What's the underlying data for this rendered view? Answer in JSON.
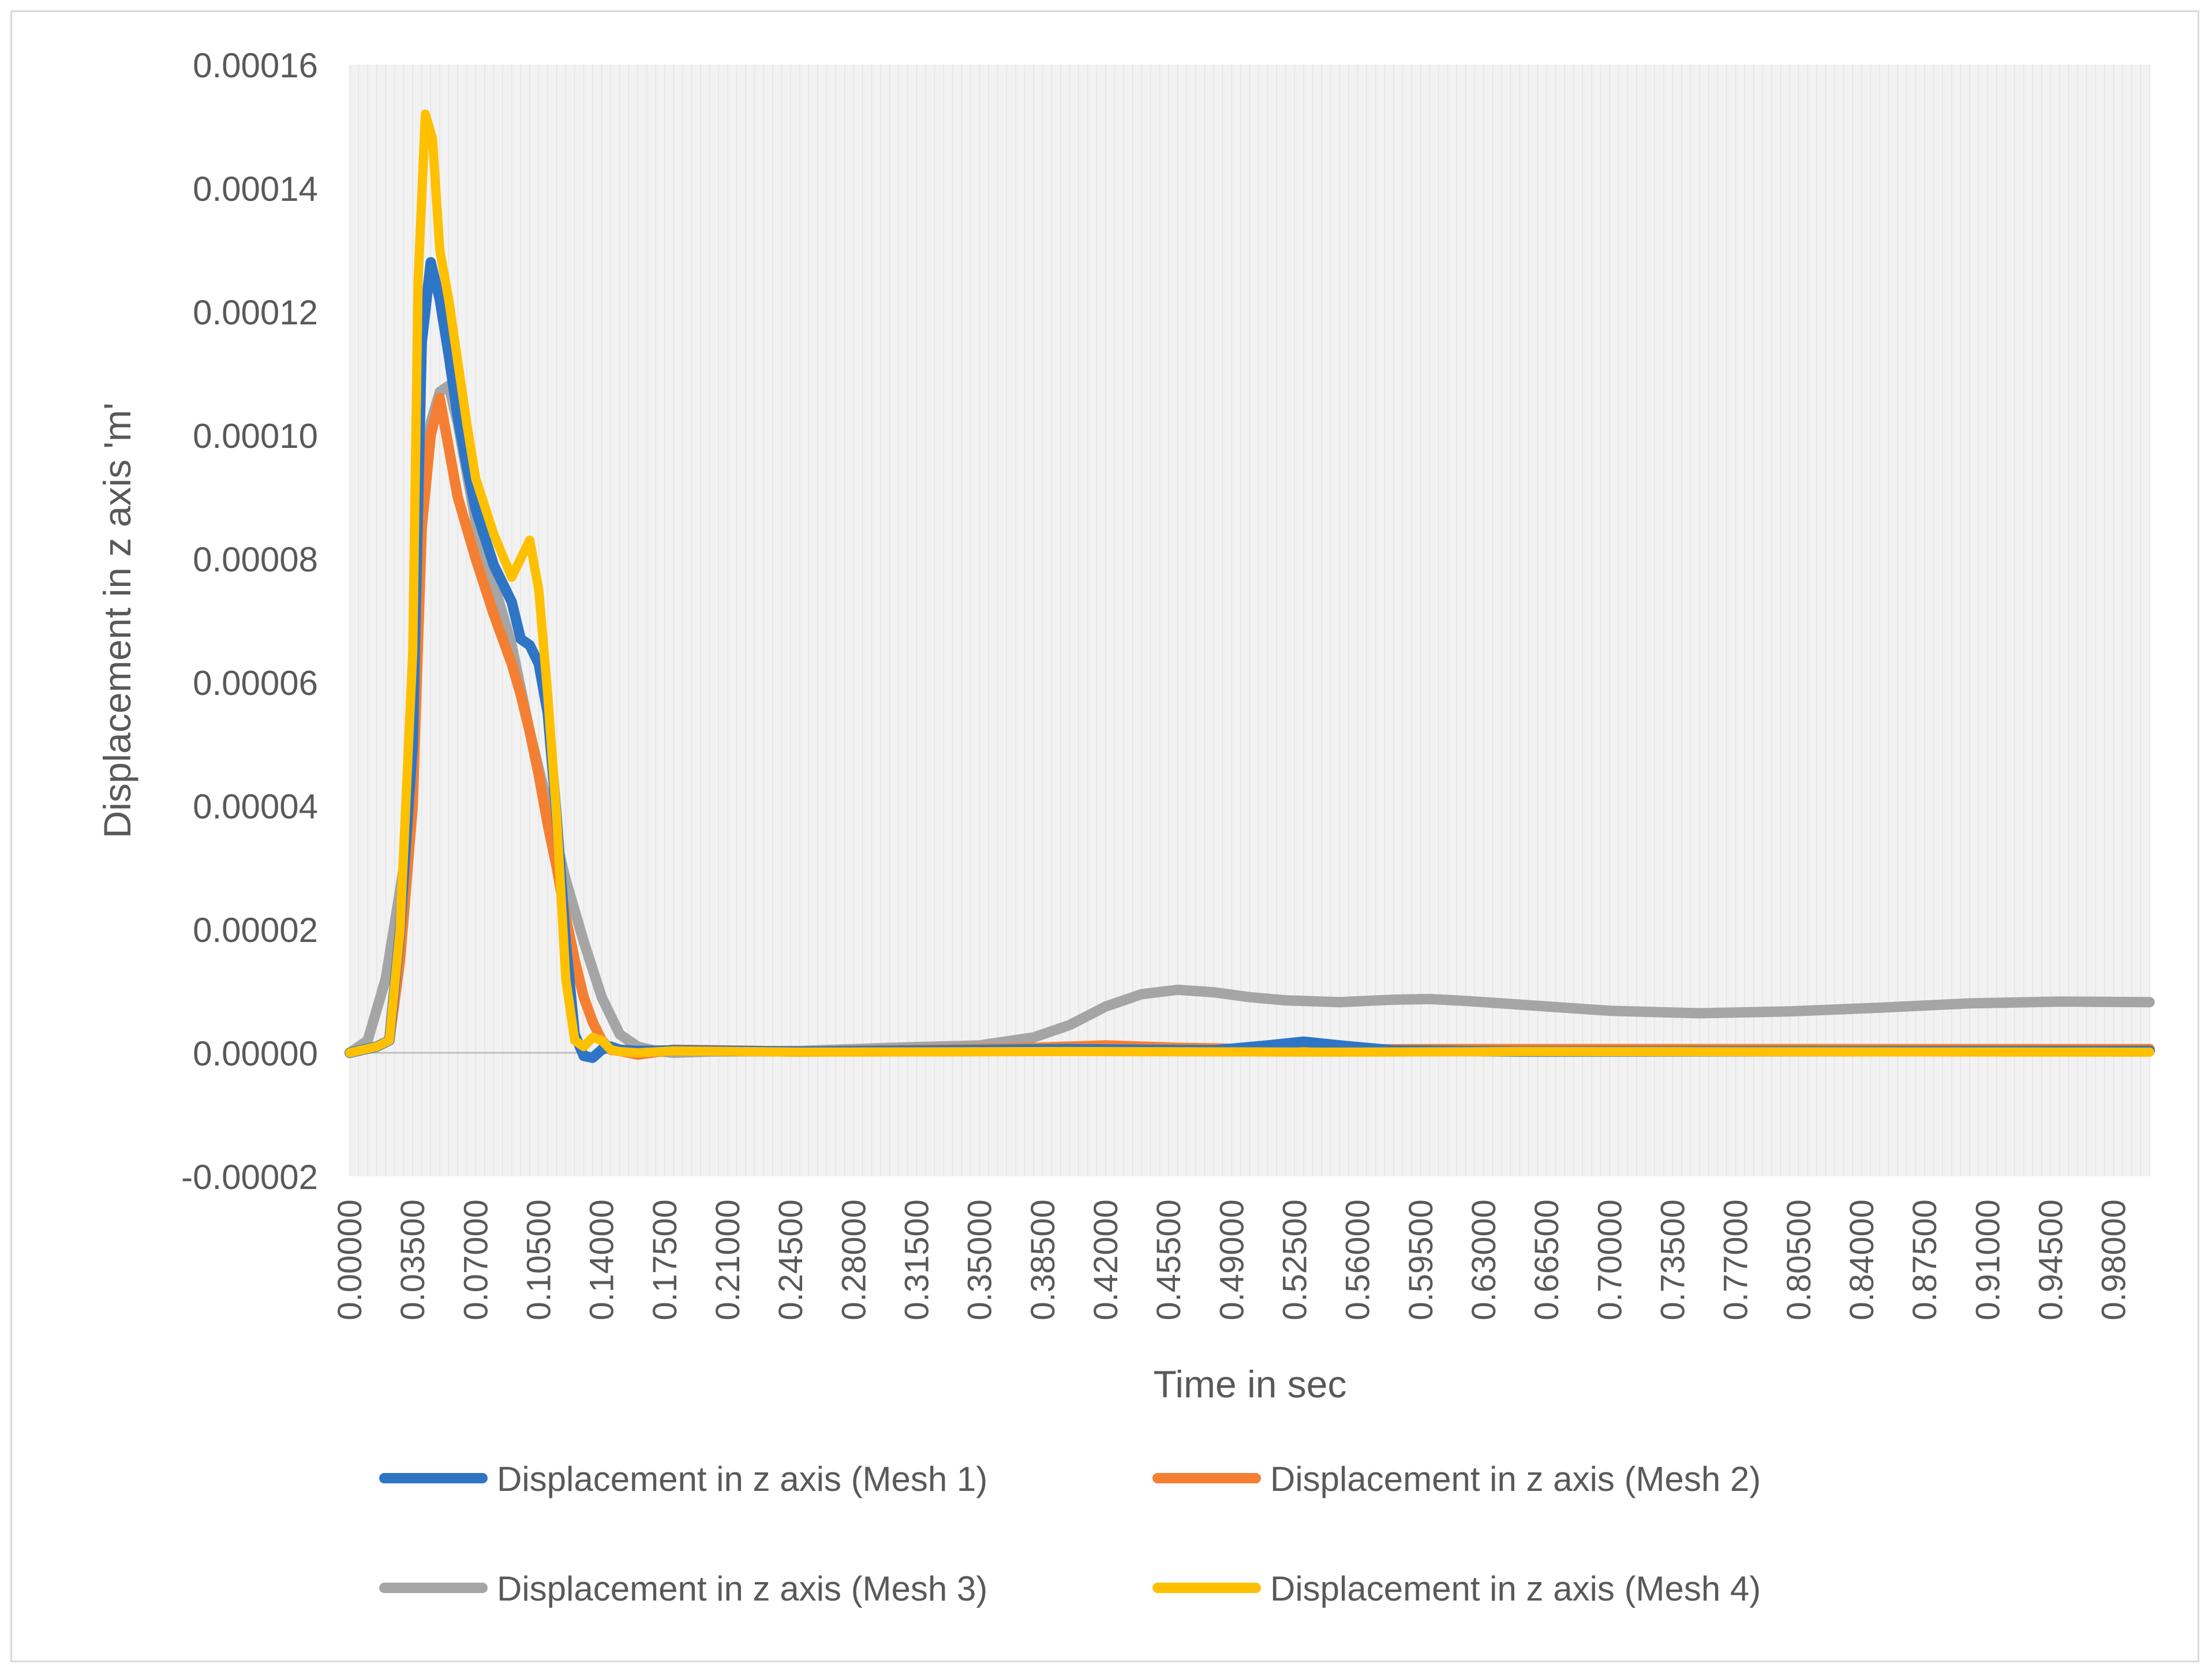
{
  "chart_data": {
    "type": "line",
    "title": "",
    "xlabel": "Time in sec",
    "ylabel": "Displacement in z axis 'm'",
    "xlim": [
      0,
      1.0
    ],
    "ylim": [
      -2e-05,
      0.00016
    ],
    "y_ticks": [
      "0.00016",
      "0.00014",
      "0.00012",
      "0.00010",
      "0.00008",
      "0.00006",
      "0.00004",
      "0.00002",
      "0.00000",
      "-0.00002"
    ],
    "y_tick_values": [
      0.00016,
      0.00014,
      0.00012,
      0.0001,
      8e-05,
      6e-05,
      4e-05,
      2e-05,
      0.0,
      -2e-05
    ],
    "x_ticks": [
      "0.00000",
      "0.03500",
      "0.07000",
      "0.10500",
      "0.14000",
      "0.17500",
      "0.21000",
      "0.24500",
      "0.28000",
      "0.31500",
      "0.35000",
      "0.38500",
      "0.42000",
      "0.45500",
      "0.49000",
      "0.52500",
      "0.56000",
      "0.59500",
      "0.63000",
      "0.66500",
      "0.70000",
      "0.73500",
      "0.77000",
      "0.80500",
      "0.84000",
      "0.87500",
      "0.91000",
      "0.94500",
      "0.98000"
    ],
    "x_tick_values": [
      0.0,
      0.035,
      0.07,
      0.105,
      0.14,
      0.175,
      0.21,
      0.245,
      0.28,
      0.315,
      0.35,
      0.385,
      0.42,
      0.455,
      0.49,
      0.525,
      0.56,
      0.595,
      0.63,
      0.665,
      0.7,
      0.735,
      0.77,
      0.805,
      0.84,
      0.875,
      0.91,
      0.945,
      0.98
    ],
    "grid": "vertical",
    "legend_position": "bottom",
    "series": [
      {
        "name": "Displacement in z axis (Mesh 1)",
        "color": "#2e75c6",
        "x": [
          0.0,
          0.015,
          0.022,
          0.028,
          0.035,
          0.04,
          0.045,
          0.05,
          0.055,
          0.06,
          0.065,
          0.07,
          0.08,
          0.09,
          0.095,
          0.1,
          0.105,
          0.11,
          0.115,
          0.12,
          0.125,
          0.13,
          0.135,
          0.14,
          0.145,
          0.15,
          0.16,
          0.18,
          0.25,
          0.4,
          0.48,
          0.51,
          0.53,
          0.55,
          0.58,
          0.65,
          1.0
        ],
        "y": [
          0.0,
          1e-06,
          2e-06,
          2e-05,
          5e-05,
          0.000115,
          0.000128,
          0.000122,
          0.000113,
          0.000103,
          9.5e-05,
          8.8e-05,
          7.9e-05,
          7.3e-05,
          6.7e-05,
          6.6e-05,
          6.3e-05,
          5.5e-05,
          3.8e-05,
          1.8e-05,
          3e-06,
          -5e-07,
          -8e-07,
          5e-07,
          1e-06,
          5e-07,
          3e-07,
          4e-07,
          2e-07,
          6e-07,
          4e-07,
          1.2e-06,
          1.8e-06,
          1.2e-06,
          4e-07,
          2e-07,
          3e-07
        ]
      },
      {
        "name": "Displacement in z axis (Mesh 2)",
        "color": "#f47f32",
        "x": [
          0.0,
          0.015,
          0.022,
          0.028,
          0.035,
          0.04,
          0.045,
          0.05,
          0.055,
          0.06,
          0.065,
          0.07,
          0.08,
          0.09,
          0.095,
          0.1,
          0.105,
          0.11,
          0.115,
          0.12,
          0.125,
          0.13,
          0.135,
          0.14,
          0.145,
          0.15,
          0.16,
          0.18,
          0.25,
          0.3,
          0.38,
          0.42,
          0.46,
          0.52,
          0.6,
          1.0
        ],
        "y": [
          0.0,
          1e-06,
          2e-06,
          1.5e-05,
          4e-05,
          8.5e-05,
          0.0001,
          0.000106,
          9.8e-05,
          9e-05,
          8.5e-05,
          8e-05,
          7.1e-05,
          6.3e-05,
          5.8e-05,
          5.2e-05,
          4.5e-05,
          3.7e-05,
          3e-05,
          2.2e-05,
          1.5e-05,
          9e-06,
          5e-06,
          2e-06,
          5e-07,
          3e-07,
          -3e-07,
          5e-07,
          2e-07,
          4e-07,
          8e-07,
          1.2e-06,
          8e-07,
          5e-07,
          6e-07,
          6e-07
        ]
      },
      {
        "name": "Displacement in z axis (Mesh 3)",
        "color": "#a5a5a5",
        "x": [
          0.0,
          0.01,
          0.02,
          0.03,
          0.04,
          0.045,
          0.05,
          0.055,
          0.06,
          0.065,
          0.07,
          0.08,
          0.09,
          0.1,
          0.11,
          0.12,
          0.13,
          0.14,
          0.15,
          0.16,
          0.17,
          0.18,
          0.2,
          0.25,
          0.3,
          0.35,
          0.38,
          0.4,
          0.42,
          0.44,
          0.46,
          0.48,
          0.5,
          0.52,
          0.55,
          0.58,
          0.6,
          0.62,
          0.65,
          0.7,
          0.75,
          0.8,
          0.85,
          0.9,
          0.95,
          1.0
        ],
        "y": [
          0.0,
          2e-06,
          1.2e-05,
          3e-05,
          8.5e-05,
          0.000102,
          0.000107,
          0.000108,
          0.000102,
          9.4e-05,
          8.6e-05,
          7.6e-05,
          6.6e-05,
          5.2e-05,
          4e-05,
          2.8e-05,
          1.8e-05,
          9e-06,
          3e-06,
          1e-06,
          3e-07,
          0.0,
          2e-07,
          3e-07,
          8e-07,
          1.2e-06,
          2.5e-06,
          4.5e-06,
          7.5e-06,
          9.5e-06,
          1.02e-05,
          9.8e-06,
          9e-06,
          8.5e-06,
          8.2e-06,
          8.6e-06,
          8.7e-06,
          8.4e-06,
          7.8e-06,
          6.8e-06,
          6.4e-06,
          6.7e-06,
          7.3e-06,
          8e-06,
          8.3e-06,
          8.2e-06
        ]
      },
      {
        "name": "Displacement in z axis (Mesh 4)",
        "color": "#ffc000",
        "x": [
          0.0,
          0.015,
          0.022,
          0.028,
          0.035,
          0.038,
          0.042,
          0.046,
          0.05,
          0.055,
          0.06,
          0.065,
          0.07,
          0.08,
          0.09,
          0.095,
          0.1,
          0.105,
          0.11,
          0.115,
          0.12,
          0.125,
          0.13,
          0.135,
          0.14,
          0.145,
          0.15,
          0.16,
          0.18,
          0.25,
          0.4,
          0.55,
          0.65,
          1.0
        ],
        "y": [
          0.0,
          1e-06,
          2e-06,
          2e-05,
          6.5e-05,
          0.000125,
          0.000152,
          0.000148,
          0.00013,
          0.000122,
          0.000112,
          0.000102,
          9.3e-05,
          8.4e-05,
          7.7e-05,
          8e-05,
          8.3e-05,
          7.5e-05,
          5.8e-05,
          3.8e-05,
          1.2e-05,
          2e-06,
          1e-06,
          2.5e-06,
          2e-06,
          5e-07,
          2e-07,
          0.0,
          3e-07,
          1e-07,
          2e-07,
          1e-07,
          2e-07,
          1e-07
        ]
      }
    ]
  }
}
